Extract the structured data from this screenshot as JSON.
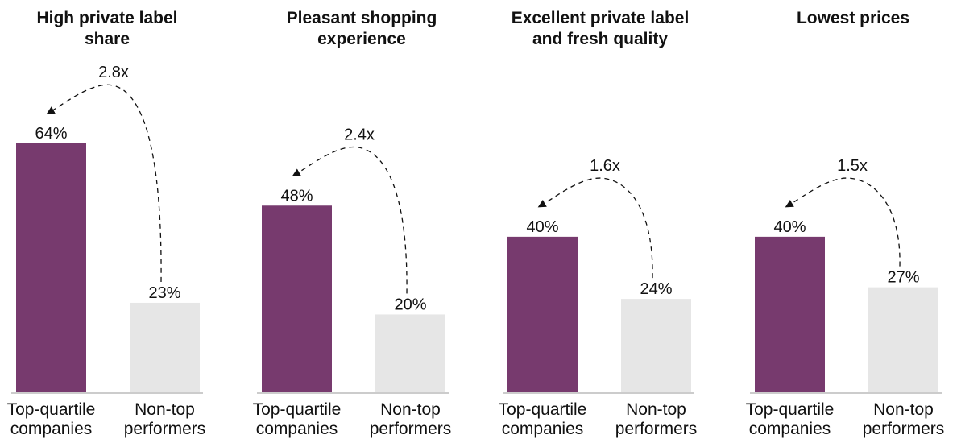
{
  "colors": {
    "top": "#773a6e",
    "non": "#e6e6e6",
    "baseline": "#9a9a9a",
    "arrow": "#111111"
  },
  "chart_data": [
    {
      "type": "bar",
      "title": [
        "High private label",
        "share"
      ],
      "categories": [
        [
          "Top-quartile",
          "companies"
        ],
        [
          "Non-top",
          "performers"
        ]
      ],
      "values": [
        64,
        23
      ],
      "value_labels": [
        "64%",
        "23%"
      ],
      "multiplier": "2.8x",
      "ylim": [
        0,
        70
      ]
    },
    {
      "type": "bar",
      "title": [
        "Pleasant shopping",
        "experience"
      ],
      "categories": [
        [
          "Top-quartile",
          "companies"
        ],
        [
          "Non-top",
          "performers"
        ]
      ],
      "values": [
        48,
        20
      ],
      "value_labels": [
        "48%",
        "20%"
      ],
      "multiplier": "2.4x",
      "ylim": [
        0,
        70
      ]
    },
    {
      "type": "bar",
      "title": [
        "Excellent private label",
        "and fresh quality"
      ],
      "categories": [
        [
          "Top-quartile",
          "companies"
        ],
        [
          "Non-top",
          "performers"
        ]
      ],
      "values": [
        40,
        24
      ],
      "value_labels": [
        "40%",
        "24%"
      ],
      "multiplier": "1.6x",
      "ylim": [
        0,
        70
      ]
    },
    {
      "type": "bar",
      "title": [
        "Lowest prices"
      ],
      "categories": [
        [
          "Top-quartile",
          "companies"
        ],
        [
          "Non-top",
          "performers"
        ]
      ],
      "values": [
        40,
        27
      ],
      "value_labels": [
        "40%",
        "27%"
      ],
      "multiplier": "1.5x",
      "ylim": [
        0,
        70
      ]
    }
  ]
}
